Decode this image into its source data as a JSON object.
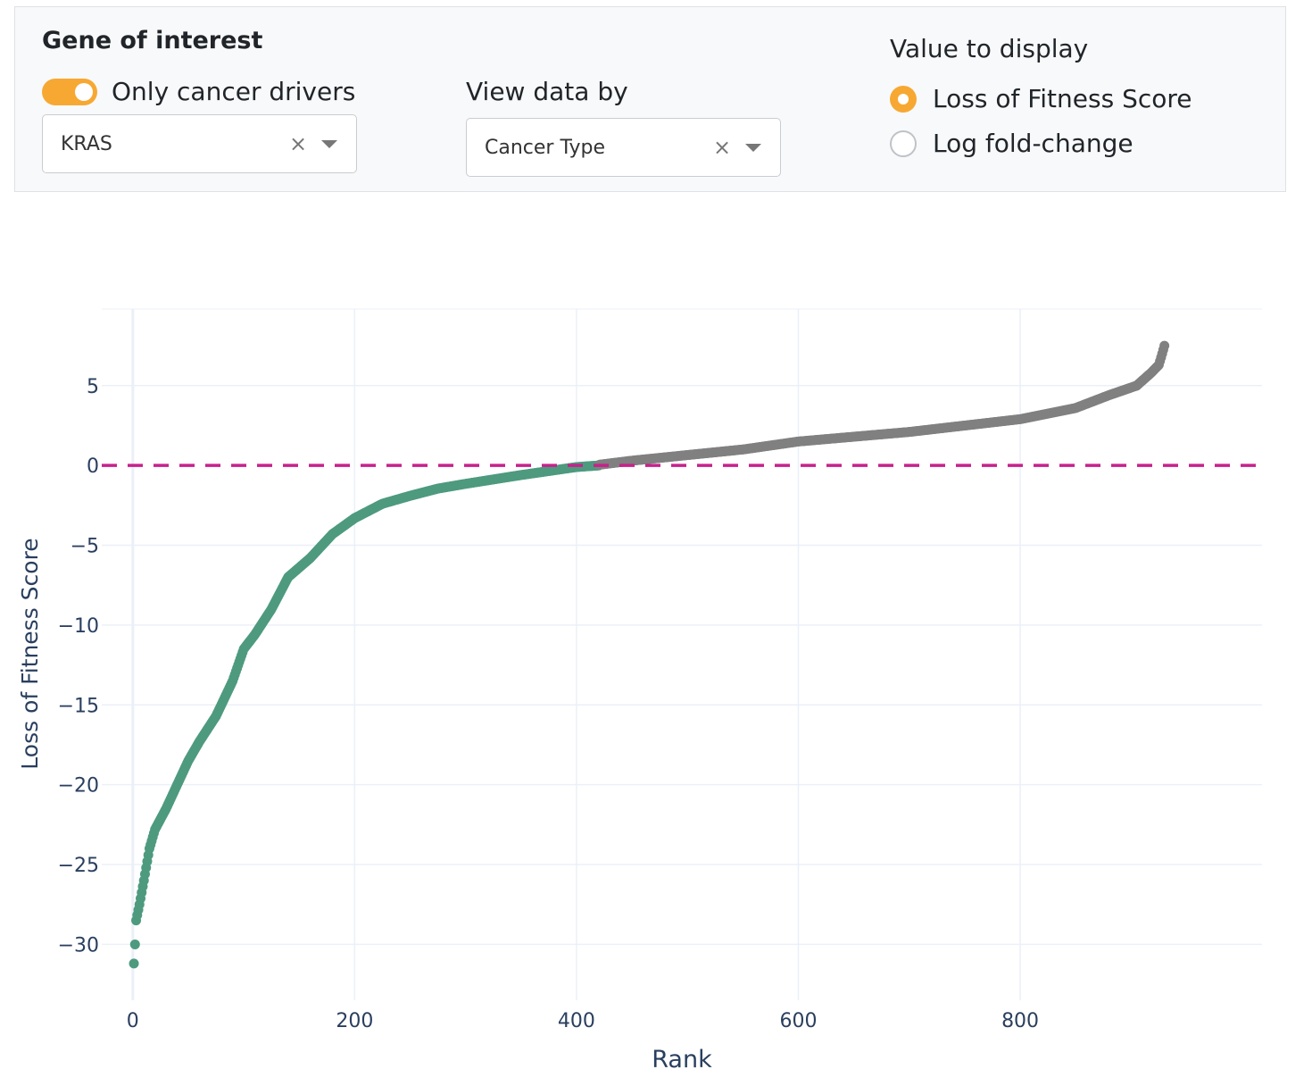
{
  "controls": {
    "gene_heading": "Gene of interest",
    "drivers_toggle": {
      "label": "Only cancer drivers",
      "on": true
    },
    "gene_select": {
      "value": "KRAS",
      "clear": "×"
    },
    "view_by": {
      "label": "View data by",
      "value": "Cancer Type",
      "clear": "×"
    },
    "value_display": {
      "label": "Value to display",
      "options": [
        {
          "label": "Loss of Fitness Score",
          "selected": true
        },
        {
          "label": "Log fold-change",
          "selected": false
        }
      ]
    }
  },
  "colors": {
    "accent": "#f7a833",
    "driver_points": "#4e9a7f",
    "other_points": "#808080",
    "zero_line": "#c7218c",
    "axis_text": "#2a3f5f",
    "grid": "#ebf0f8"
  },
  "chart_data": {
    "type": "scatter",
    "title": "",
    "xlabel": "Rank",
    "ylabel": "Loss of Fitness Score",
    "xlim": [
      -28,
      1018
    ],
    "ylim": [
      -33.5,
      9.8
    ],
    "xticks": [
      0,
      200,
      400,
      600,
      800
    ],
    "yticks": [
      5,
      0,
      -5,
      -10,
      -15,
      -20,
      -25,
      -30
    ],
    "ytick_labels": [
      "5",
      "0",
      "−5",
      "−10",
      "−15",
      "−20",
      "−25",
      "−30"
    ],
    "grid": true,
    "reference_line": {
      "y": 0,
      "style": "dashed"
    },
    "n_points": 930,
    "series": [
      {
        "color": "#4e9a7f",
        "rank_range": [
          1,
          420
        ],
        "profile": [
          [
            1,
            -31.2
          ],
          [
            2,
            -30.0
          ],
          [
            3,
            -28.5
          ],
          [
            6,
            -27.5
          ],
          [
            10,
            -26.0
          ],
          [
            15,
            -24.0
          ],
          [
            20,
            -22.8
          ],
          [
            30,
            -21.5
          ],
          [
            40,
            -20.0
          ],
          [
            50,
            -18.5
          ],
          [
            60,
            -17.3
          ],
          [
            75,
            -15.7
          ],
          [
            90,
            -13.5
          ],
          [
            100,
            -11.5
          ],
          [
            110,
            -10.6
          ],
          [
            125,
            -9.0
          ],
          [
            140,
            -7.0
          ],
          [
            160,
            -5.8
          ],
          [
            180,
            -4.3
          ],
          [
            200,
            -3.3
          ],
          [
            225,
            -2.4
          ],
          [
            250,
            -1.9
          ],
          [
            275,
            -1.45
          ],
          [
            300,
            -1.15
          ],
          [
            350,
            -0.6
          ],
          [
            400,
            -0.1
          ],
          [
            420,
            0.0
          ]
        ]
      },
      {
        "color": "#808080",
        "rank_range": [
          421,
          930
        ],
        "profile": [
          [
            421,
            0.05
          ],
          [
            450,
            0.3
          ],
          [
            500,
            0.65
          ],
          [
            550,
            1.0
          ],
          [
            600,
            1.5
          ],
          [
            650,
            1.8
          ],
          [
            700,
            2.1
          ],
          [
            750,
            2.5
          ],
          [
            800,
            2.9
          ],
          [
            850,
            3.6
          ],
          [
            880,
            4.4
          ],
          [
            905,
            5.0
          ],
          [
            918,
            5.8
          ],
          [
            925,
            6.3
          ],
          [
            928,
            7.0
          ],
          [
            930,
            7.5
          ]
        ]
      }
    ]
  }
}
